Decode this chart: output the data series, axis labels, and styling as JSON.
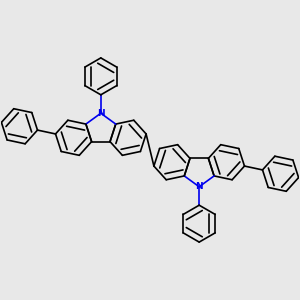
{
  "background_color": "#e8e8e8",
  "bond_color": "#000000",
  "N_color": "#0000ee",
  "bond_width": 1.2,
  "figsize": [
    3.0,
    3.0
  ],
  "dpi": 100
}
